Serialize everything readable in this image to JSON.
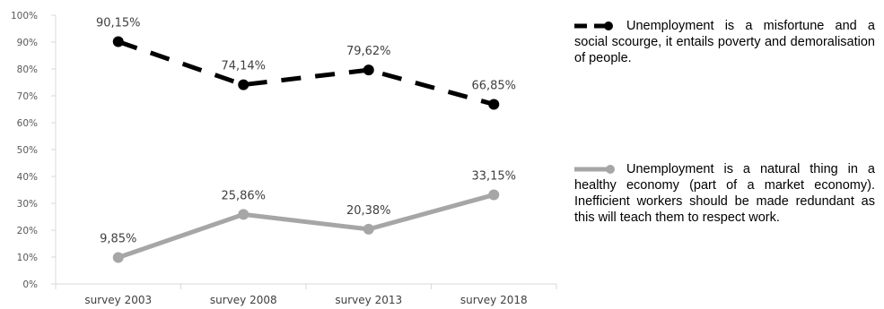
{
  "chart_data": {
    "type": "line",
    "categories": [
      "survey 2003",
      "survey 2008",
      "survey 2013",
      "survey 2018"
    ],
    "series": [
      {
        "name": "Unemployment is a misfortune and a social scourge, it entails poverty and demoralisation of people.",
        "values": [
          90.15,
          74.14,
          79.62,
          66.85
        ],
        "labels": [
          "90,15%",
          "74,14%",
          "79,62%",
          "66,85%"
        ],
        "color": "#000000",
        "style": "dashed"
      },
      {
        "name": "Unemployment is a natural thing in a healthy economy (part of a market economy). Inefficient workers should be made redundant as this will teach them to respect work.",
        "values": [
          9.85,
          25.86,
          20.38,
          33.15
        ],
        "labels": [
          "9,85%",
          "25,86%",
          "20,38%",
          "33,15%"
        ],
        "color": "#a6a6a6",
        "style": "solid"
      }
    ],
    "ylim": [
      0,
      100
    ],
    "yticks": [
      "0%",
      "10%",
      "20%",
      "30%",
      "40%",
      "50%",
      "60%",
      "70%",
      "80%",
      "90%",
      "100%"
    ],
    "legend_position": "right"
  }
}
